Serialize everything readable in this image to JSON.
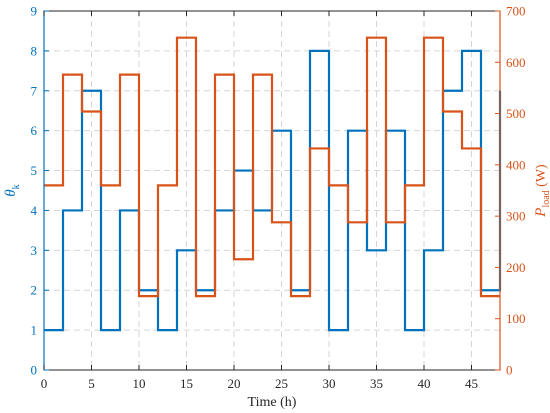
{
  "chart_data": {
    "type": "line",
    "step": "post",
    "x": [
      0,
      2,
      4,
      6,
      8,
      10,
      12,
      14,
      16,
      18,
      20,
      22,
      24,
      26,
      28,
      30,
      32,
      34,
      36,
      38,
      40,
      42,
      44,
      46,
      48
    ],
    "xlabel": "Time (h)",
    "xlim": [
      0,
      48
    ],
    "xticks": [
      "0",
      "5",
      "10",
      "15",
      "20",
      "25",
      "30",
      "35",
      "40",
      "45"
    ],
    "xtick_values": [
      0,
      5,
      10,
      15,
      20,
      25,
      30,
      35,
      40,
      45
    ],
    "grid": true,
    "series": [
      {
        "axis": "left",
        "color": "#0072BD",
        "values": [
          1,
          4,
          7,
          1,
          4,
          2,
          1,
          3,
          2,
          4,
          5,
          4,
          6,
          2,
          8,
          1,
          6,
          3,
          6,
          1,
          3,
          7,
          8,
          2,
          7
        ]
      },
      {
        "axis": "right",
        "color": "#D95319",
        "values": [
          360,
          576,
          504,
          360,
          576,
          144,
          360,
          648,
          144,
          576,
          216,
          576,
          288,
          144,
          432,
          360,
          288,
          648,
          288,
          360,
          648,
          504,
          432,
          144,
          144
        ]
      }
    ],
    "left_axis": {
      "label_main": "θ",
      "label_sub": "k",
      "ylim": [
        0,
        9
      ],
      "ticks": [
        "0",
        "1",
        "2",
        "3",
        "4",
        "5",
        "6",
        "7",
        "8",
        "9"
      ],
      "tick_values": [
        0,
        1,
        2,
        3,
        4,
        5,
        6,
        7,
        8,
        9
      ],
      "color": "#0072BD"
    },
    "right_axis": {
      "label_main": "P",
      "label_sub": "load",
      "label_unit": " (W)",
      "ylim": [
        0,
        700
      ],
      "ticks": [
        "0",
        "100",
        "200",
        "300",
        "400",
        "500",
        "600",
        "700"
      ],
      "tick_values": [
        0,
        100,
        200,
        300,
        400,
        500,
        600,
        700
      ],
      "color": "#D95319"
    }
  }
}
